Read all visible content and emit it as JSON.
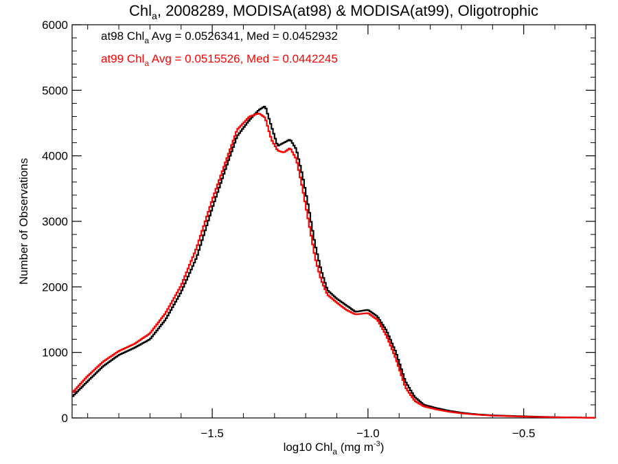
{
  "chart_data": {
    "type": "line",
    "title_main": "Chl",
    "title_sub": "a",
    "title_rest": ", 2008289, MODISA(at98) & MODISA(at99), Oligotrophic",
    "xlabel_main": "log10 Chl",
    "xlabel_sub": "a",
    "xlabel_units": " (mg m",
    "xlabel_exp": "-3",
    "xlabel_close": ")",
    "ylabel": "Number of Observations",
    "xlim": [
      -1.95,
      -0.27
    ],
    "ylim": [
      0,
      6000
    ],
    "x_ticks": [
      {
        "value": -1.5,
        "label": "−1.5"
      },
      {
        "value": -1.0,
        "label": "−1.0"
      },
      {
        "value": -0.5,
        "label": "−0.5"
      }
    ],
    "y_ticks": [
      {
        "value": 0,
        "label": "0"
      },
      {
        "value": 1000,
        "label": "1000"
      },
      {
        "value": 2000,
        "label": "2000"
      },
      {
        "value": 3000,
        "label": "3000"
      },
      {
        "value": 4000,
        "label": "4000"
      },
      {
        "value": 5000,
        "label": "5000"
      },
      {
        "value": 6000,
        "label": "6000"
      }
    ],
    "grid": false,
    "legend_position": "top-left",
    "series": [
      {
        "name": "at98",
        "color": "#000000",
        "legend": {
          "pre": "at98 Chl",
          "sub": "a",
          "post": " Avg = 0.0526341, Med = 0.0452932"
        },
        "points": [
          [
            -1.95,
            320
          ],
          [
            -1.9,
            560
          ],
          [
            -1.85,
            790
          ],
          [
            -1.8,
            960
          ],
          [
            -1.75,
            1070
          ],
          [
            -1.7,
            1200
          ],
          [
            -1.65,
            1500
          ],
          [
            -1.6,
            1920
          ],
          [
            -1.55,
            2450
          ],
          [
            -1.5,
            3200
          ],
          [
            -1.45,
            3900
          ],
          [
            -1.42,
            4300
          ],
          [
            -1.38,
            4550
          ],
          [
            -1.35,
            4700
          ],
          [
            -1.33,
            4760
          ],
          [
            -1.31,
            4450
          ],
          [
            -1.29,
            4150
          ],
          [
            -1.27,
            4200
          ],
          [
            -1.25,
            4250
          ],
          [
            -1.23,
            4100
          ],
          [
            -1.21,
            3700
          ],
          [
            -1.19,
            3200
          ],
          [
            -1.17,
            2650
          ],
          [
            -1.15,
            2250
          ],
          [
            -1.13,
            1950
          ],
          [
            -1.1,
            1820
          ],
          [
            -1.07,
            1720
          ],
          [
            -1.04,
            1620
          ],
          [
            -1.0,
            1650
          ],
          [
            -0.97,
            1550
          ],
          [
            -0.94,
            1330
          ],
          [
            -0.91,
            1000
          ],
          [
            -0.88,
            560
          ],
          [
            -0.85,
            320
          ],
          [
            -0.82,
            200
          ],
          [
            -0.78,
            150
          ],
          [
            -0.74,
            110
          ],
          [
            -0.7,
            80
          ],
          [
            -0.65,
            55
          ],
          [
            -0.6,
            40
          ],
          [
            -0.5,
            25
          ],
          [
            -0.4,
            12
          ],
          [
            -0.3,
            5
          ],
          [
            -0.27,
            3
          ]
        ]
      },
      {
        "name": "at99",
        "color": "#ff0000",
        "legend": {
          "pre": "at99 Chl",
          "sub": "a",
          "post": " Avg = 0.0515526, Med = 0.0442245"
        },
        "points": [
          [
            -1.95,
            380
          ],
          [
            -1.9,
            640
          ],
          [
            -1.85,
            860
          ],
          [
            -1.8,
            1020
          ],
          [
            -1.75,
            1130
          ],
          [
            -1.7,
            1290
          ],
          [
            -1.65,
            1600
          ],
          [
            -1.6,
            2020
          ],
          [
            -1.55,
            2600
          ],
          [
            -1.5,
            3330
          ],
          [
            -1.45,
            4000
          ],
          [
            -1.42,
            4400
          ],
          [
            -1.38,
            4600
          ],
          [
            -1.35,
            4650
          ],
          [
            -1.33,
            4580
          ],
          [
            -1.31,
            4250
          ],
          [
            -1.29,
            4080
          ],
          [
            -1.27,
            4050
          ],
          [
            -1.25,
            4120
          ],
          [
            -1.23,
            3950
          ],
          [
            -1.21,
            3500
          ],
          [
            -1.19,
            2980
          ],
          [
            -1.17,
            2450
          ],
          [
            -1.15,
            2100
          ],
          [
            -1.13,
            1880
          ],
          [
            -1.1,
            1760
          ],
          [
            -1.07,
            1650
          ],
          [
            -1.04,
            1580
          ],
          [
            -1.0,
            1600
          ],
          [
            -0.97,
            1500
          ],
          [
            -0.94,
            1250
          ],
          [
            -0.91,
            900
          ],
          [
            -0.88,
            470
          ],
          [
            -0.85,
            260
          ],
          [
            -0.82,
            175
          ],
          [
            -0.78,
            130
          ],
          [
            -0.74,
            95
          ],
          [
            -0.7,
            70
          ],
          [
            -0.65,
            50
          ],
          [
            -0.6,
            35
          ],
          [
            -0.5,
            20
          ],
          [
            -0.4,
            10
          ],
          [
            -0.3,
            4
          ],
          [
            -0.27,
            2
          ]
        ]
      }
    ]
  }
}
